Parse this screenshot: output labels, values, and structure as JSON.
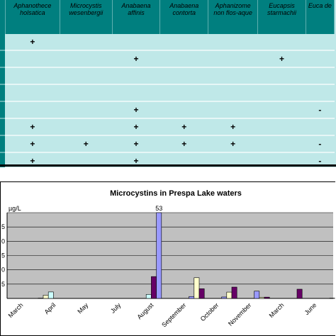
{
  "table": {
    "headers": [
      "",
      "Aphanothece holsatica",
      "Microcystis wesenbergii",
      "Anabaena affinis",
      "Anabaena contorta",
      "Aphanizome non flos-aque",
      "Eucapsis starmachii",
      "Euca de"
    ],
    "rows": [
      [
        "",
        "+",
        "",
        "",
        "",
        "",
        "",
        ""
      ],
      [
        "",
        "",
        "",
        "+",
        "",
        "",
        "+",
        ""
      ],
      [
        "",
        "",
        "",
        "",
        "",
        "",
        "",
        ""
      ],
      [
        "",
        "",
        "",
        "",
        "",
        "",
        "",
        ""
      ],
      [
        "",
        "",
        "",
        "+",
        "",
        "",
        "",
        "-"
      ],
      [
        "",
        "+",
        "",
        "+",
        "+",
        "+",
        "",
        ""
      ],
      [
        "",
        "+",
        "+",
        "+",
        "+",
        "+",
        "",
        "-"
      ],
      [
        "",
        "+",
        "",
        "+",
        "",
        "",
        "",
        "-"
      ]
    ]
  },
  "chart_data": {
    "type": "bar",
    "title": "Microcystins in Prespa Lake waters",
    "ylabel": "µg/L",
    "ylim": [
      0,
      53
    ],
    "yticks": [
      "5",
      "0",
      "5",
      "0",
      "5"
    ],
    "plot_background": "#c0c0c0",
    "grid": true,
    "categories": [
      "March",
      "April",
      "May",
      "July",
      "August",
      "September",
      "October",
      "November",
      "March",
      "June"
    ],
    "series": [
      {
        "color": "#9999ff",
        "values": [
          0,
          0,
          0,
          0,
          0,
          0,
          0,
          0,
          0,
          0
        ]
      },
      {
        "color": "#993366",
        "values": [
          0,
          0.2,
          0,
          0,
          0,
          0,
          0,
          0,
          0,
          0
        ]
      },
      {
        "color": "#ffffcc",
        "values": [
          0,
          2,
          0,
          0,
          0,
          0,
          0,
          0,
          0,
          0
        ]
      },
      {
        "color": "#ccffff",
        "values": [
          0,
          4,
          0,
          0,
          2.5,
          0,
          0,
          0,
          0,
          0
        ]
      },
      {
        "color": "#660066",
        "values": [
          0,
          0,
          0,
          0,
          13.5,
          0,
          0,
          0,
          0,
          0
        ]
      },
      {
        "color": "#9999ff",
        "values": [
          0,
          0,
          0,
          0,
          53,
          1.2,
          0.9,
          4.5,
          0,
          0
        ]
      },
      {
        "color": "#ffffcc",
        "values": [
          0,
          0,
          0,
          0,
          0,
          12.8,
          3.9,
          0.7,
          0,
          0
        ]
      },
      {
        "color": "#660066",
        "values": [
          0,
          0,
          0,
          0,
          0,
          6,
          7,
          0.8,
          5.7,
          0.2
        ]
      },
      {
        "color": "#993366",
        "values": [
          0,
          0,
          0,
          0,
          0,
          0,
          0,
          0,
          0,
          0
        ]
      }
    ],
    "data_labels": [
      {
        "category": "August",
        "value": "53"
      }
    ]
  }
}
